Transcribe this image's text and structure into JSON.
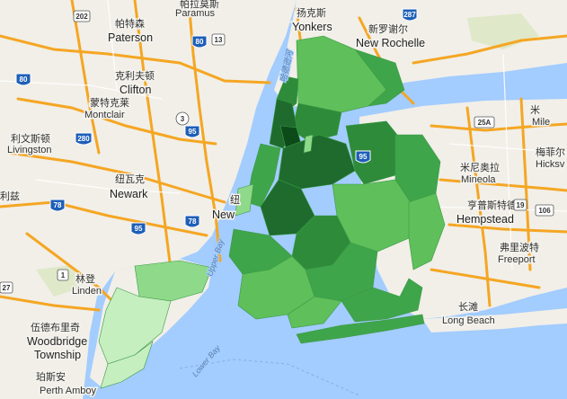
{
  "map": {
    "colors": {
      "water": "#a3ccff",
      "land": "#f1efe8",
      "green_land": "#dfe8c8",
      "highway": "#f5a623",
      "highway_border": "#e08c14",
      "interstate": "#1d5fb8",
      "us_route": "#ffffff",
      "state_route": "#ffffff",
      "choropleth": [
        "#0d4a1a",
        "#1e6b2d",
        "#2e8b3a",
        "#3fa54a",
        "#5fbf5a",
        "#8fd98a",
        "#c6efc0"
      ]
    },
    "labels": [
      {
        "id": "paterson-zh",
        "text": "帕特森"
      },
      {
        "id": "paterson",
        "text": "Paterson"
      },
      {
        "id": "paramus-zh",
        "text": "帕拉莫斯"
      },
      {
        "id": "paramus",
        "text": "Paramus"
      },
      {
        "id": "yonkers-zh",
        "text": "扬克斯"
      },
      {
        "id": "yonkers",
        "text": "Yonkers"
      },
      {
        "id": "newrochelle-zh",
        "text": "新罗谢尔"
      },
      {
        "id": "newrochelle",
        "text": "New Rochelle"
      },
      {
        "id": "clifton-zh",
        "text": "克利夫顿"
      },
      {
        "id": "clifton",
        "text": "Clifton"
      },
      {
        "id": "montclair-zh",
        "text": "蒙特克莱"
      },
      {
        "id": "montclair",
        "text": "Montclair"
      },
      {
        "id": "livingston-zh",
        "text": "利文斯顿"
      },
      {
        "id": "livingston",
        "text": "Livingston"
      },
      {
        "id": "newark-zh",
        "text": "纽瓦克"
      },
      {
        "id": "newark",
        "text": "Newark"
      },
      {
        "id": "newyork-partial",
        "text": "New"
      },
      {
        "id": "newyork-zh-partial",
        "text": "纽"
      },
      {
        "id": "mineola-zh",
        "text": "米尼奥拉"
      },
      {
        "id": "mineola",
        "text": "Mineola"
      },
      {
        "id": "hempstead-zh",
        "text": "亨普斯特德"
      },
      {
        "id": "hempstead",
        "text": "Hempstead"
      },
      {
        "id": "freeport-zh",
        "text": "弗里波特"
      },
      {
        "id": "freeport",
        "text": "Freeport"
      },
      {
        "id": "longbeach-zh",
        "text": "长滩"
      },
      {
        "id": "longbeach",
        "text": "Long Beach"
      },
      {
        "id": "hicksville-zh",
        "text": "梅菲尔"
      },
      {
        "id": "hicksville",
        "text": "Hicksv"
      },
      {
        "id": "linden-zh",
        "text": "林登"
      },
      {
        "id": "linden",
        "text": "Linden"
      },
      {
        "id": "woodbridge-zh",
        "text": "伍德布里奇"
      },
      {
        "id": "woodbridge",
        "text": "Woodbridge"
      },
      {
        "id": "township",
        "text": "Township"
      },
      {
        "id": "perthamboy-zh",
        "text": "珀斯安"
      },
      {
        "id": "perthamboy",
        "text": "Perth Amboy"
      },
      {
        "id": "mile-zh",
        "text": "米"
      },
      {
        "id": "mile",
        "text": "Mile"
      },
      {
        "id": "lzl-zh",
        "text": "利兹"
      },
      {
        "id": "upperbay",
        "text": "Upper Bay"
      },
      {
        "id": "lowerbay",
        "text": "Lower Bay"
      },
      {
        "id": "hudson-zh",
        "text": "哈德逊河"
      }
    ],
    "shields": [
      {
        "id": "i287",
        "text": "287",
        "kind": "interstate"
      },
      {
        "id": "i202",
        "text": "202",
        "kind": "us"
      },
      {
        "id": "i80a",
        "text": "80",
        "kind": "interstate"
      },
      {
        "id": "i80b",
        "text": "80",
        "kind": "interstate"
      },
      {
        "id": "i95a",
        "text": "95",
        "kind": "interstate"
      },
      {
        "id": "i95b",
        "text": "95",
        "kind": "interstate"
      },
      {
        "id": "i95c",
        "text": "95",
        "kind": "interstate"
      },
      {
        "id": "i280",
        "text": "280",
        "kind": "interstate"
      },
      {
        "id": "i78a",
        "text": "78",
        "kind": "interstate"
      },
      {
        "id": "i78b",
        "text": "78",
        "kind": "interstate"
      },
      {
        "id": "r3",
        "text": "3",
        "kind": "state"
      },
      {
        "id": "r19",
        "text": "19",
        "kind": "state"
      },
      {
        "id": "r25a",
        "text": "25A",
        "kind": "state"
      },
      {
        "id": "r106",
        "text": "106",
        "kind": "state"
      },
      {
        "id": "r13",
        "text": "13",
        "kind": "state"
      },
      {
        "id": "r1",
        "text": "1",
        "kind": "us"
      },
      {
        "id": "r27",
        "text": "27",
        "kind": "state"
      }
    ]
  }
}
